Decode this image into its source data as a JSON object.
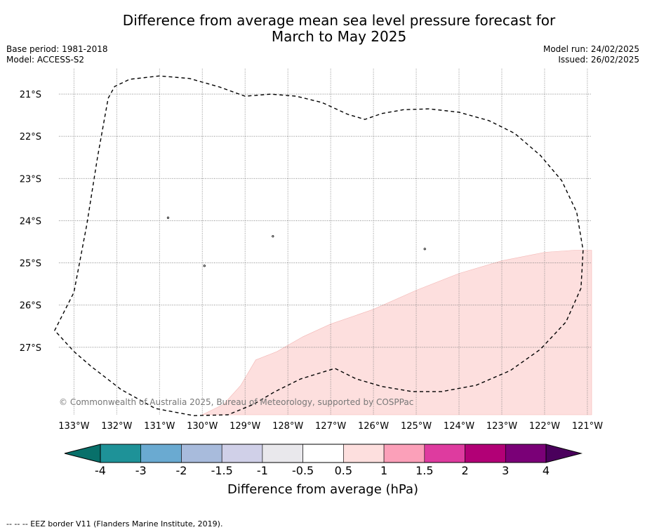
{
  "title_line1": "Difference from average mean sea level pressure forecast for",
  "title_line2": "March to May 2025",
  "base_period": "Base period: 1981-2018",
  "model": "Model: ACCESS-S2",
  "model_run": "Model run: 24/02/2025",
  "issued": "Issued: 26/02/2025",
  "copyright": "© Commonwealth of Australia 2025, Bureau of Meteorology, supported by COSPPac",
  "footer": "--  --  -- EEZ border V11 (Flanders Marine Institute, 2019).",
  "map": {
    "lon_labels": [
      "133°W",
      "132°W",
      "131°W",
      "130°W",
      "129°W",
      "128°W",
      "127°W",
      "126°W",
      "125°W",
      "124°W",
      "123°W",
      "122°W",
      "121°W"
    ],
    "lat_labels": [
      "21°S",
      "22°S",
      "23°S",
      "24°S",
      "25°S",
      "26°S",
      "27°S"
    ],
    "lon_range": [
      -133.35,
      -120.9
    ],
    "lat_range": [
      -20.4,
      -28.6
    ],
    "shaded_category": "0.5 to 1",
    "shaded_color": "#fddfde",
    "eez_border": "dashed",
    "shaded_region_boundary": [
      [
        -130.0,
        -28.6
      ],
      [
        -129.5,
        -28.35
      ],
      [
        -129.1,
        -27.9
      ],
      [
        -128.75,
        -27.3
      ],
      [
        -128.25,
        -27.1
      ],
      [
        -127.65,
        -26.75
      ],
      [
        -127.0,
        -26.45
      ],
      [
        -126.0,
        -26.1
      ],
      [
        -125.0,
        -25.65
      ],
      [
        -124.0,
        -25.25
      ],
      [
        -123.0,
        -24.95
      ],
      [
        -122.0,
        -24.75
      ],
      [
        -121.3,
        -24.7
      ],
      [
        -120.9,
        -24.7
      ]
    ],
    "eez_border_line": [
      [
        -132.2,
        -21.1
      ],
      [
        -132.05,
        -20.82
      ],
      [
        -131.7,
        -20.65
      ],
      [
        -131.0,
        -20.57
      ],
      [
        -130.3,
        -20.63
      ],
      [
        -129.6,
        -20.83
      ],
      [
        -129.0,
        -21.05
      ],
      [
        -128.4,
        -21.0
      ],
      [
        -127.8,
        -21.05
      ],
      [
        -127.2,
        -21.2
      ],
      [
        -126.6,
        -21.48
      ],
      [
        -126.2,
        -21.6
      ],
      [
        -125.8,
        -21.46
      ],
      [
        -125.3,
        -21.37
      ],
      [
        -124.7,
        -21.35
      ],
      [
        -124.0,
        -21.43
      ],
      [
        -123.3,
        -21.63
      ],
      [
        -122.7,
        -21.93
      ],
      [
        -122.1,
        -22.45
      ],
      [
        -121.6,
        -23.05
      ],
      [
        -121.25,
        -23.8
      ],
      [
        -121.1,
        -24.7
      ],
      [
        -121.15,
        -25.6
      ],
      [
        -121.5,
        -26.4
      ],
      [
        -122.1,
        -27.05
      ],
      [
        -122.8,
        -27.55
      ],
      [
        -123.6,
        -27.9
      ],
      [
        -124.4,
        -28.05
      ],
      [
        -125.1,
        -28.05
      ],
      [
        -125.8,
        -27.93
      ],
      [
        -126.4,
        -27.75
      ],
      [
        -126.9,
        -27.5
      ],
      [
        -127.7,
        -27.75
      ],
      [
        -128.3,
        -28.05
      ],
      [
        -128.8,
        -28.35
      ],
      [
        -129.4,
        -28.6
      ],
      [
        -130.2,
        -28.62
      ],
      [
        -131.1,
        -28.45
      ],
      [
        -131.9,
        -28.0
      ],
      [
        -132.6,
        -27.45
      ],
      [
        -133.0,
        -27.1
      ],
      [
        -133.45,
        -26.6
      ],
      [
        -133.0,
        -25.7
      ],
      [
        -132.7,
        -24.1
      ],
      [
        -132.45,
        -22.5
      ],
      [
        -132.2,
        -21.1
      ]
    ],
    "islands": [
      [
        -130.8,
        -23.93
      ],
      [
        -128.35,
        -24.37
      ],
      [
        -124.8,
        -24.67
      ],
      [
        -129.95,
        -25.07
      ]
    ]
  },
  "legend": {
    "title": "Difference from average (hPa)",
    "tick_labels": [
      "-4",
      "-3",
      "-2",
      "-1.5",
      "-1",
      "-0.5",
      "0.5",
      "1",
      "1.5",
      "2",
      "3",
      "4"
    ],
    "bins": [
      {
        "range": "below -4",
        "color": "#08706a"
      },
      {
        "range": "-4 to -3",
        "color": "#1e9298"
      },
      {
        "range": "-3 to -2",
        "color": "#6aaad1"
      },
      {
        "range": "-2 to -1.5",
        "color": "#a8bbdc"
      },
      {
        "range": "-1.5 to -1",
        "color": "#d0d0e8"
      },
      {
        "range": "-1 to -0.5",
        "color": "#e9e8ec"
      },
      {
        "range": "-0.5 to 0.5",
        "color": "#ffffff"
      },
      {
        "range": "0.5 to 1",
        "color": "#fddfde"
      },
      {
        "range": "1 to 1.5",
        "color": "#fba0b9"
      },
      {
        "range": "1.5 to 2",
        "color": "#de3b9f"
      },
      {
        "range": "2 to 3",
        "color": "#b20076"
      },
      {
        "range": "3 to 4",
        "color": "#7a0077"
      },
      {
        "range": "above 4",
        "color": "#4a005c"
      }
    ]
  }
}
